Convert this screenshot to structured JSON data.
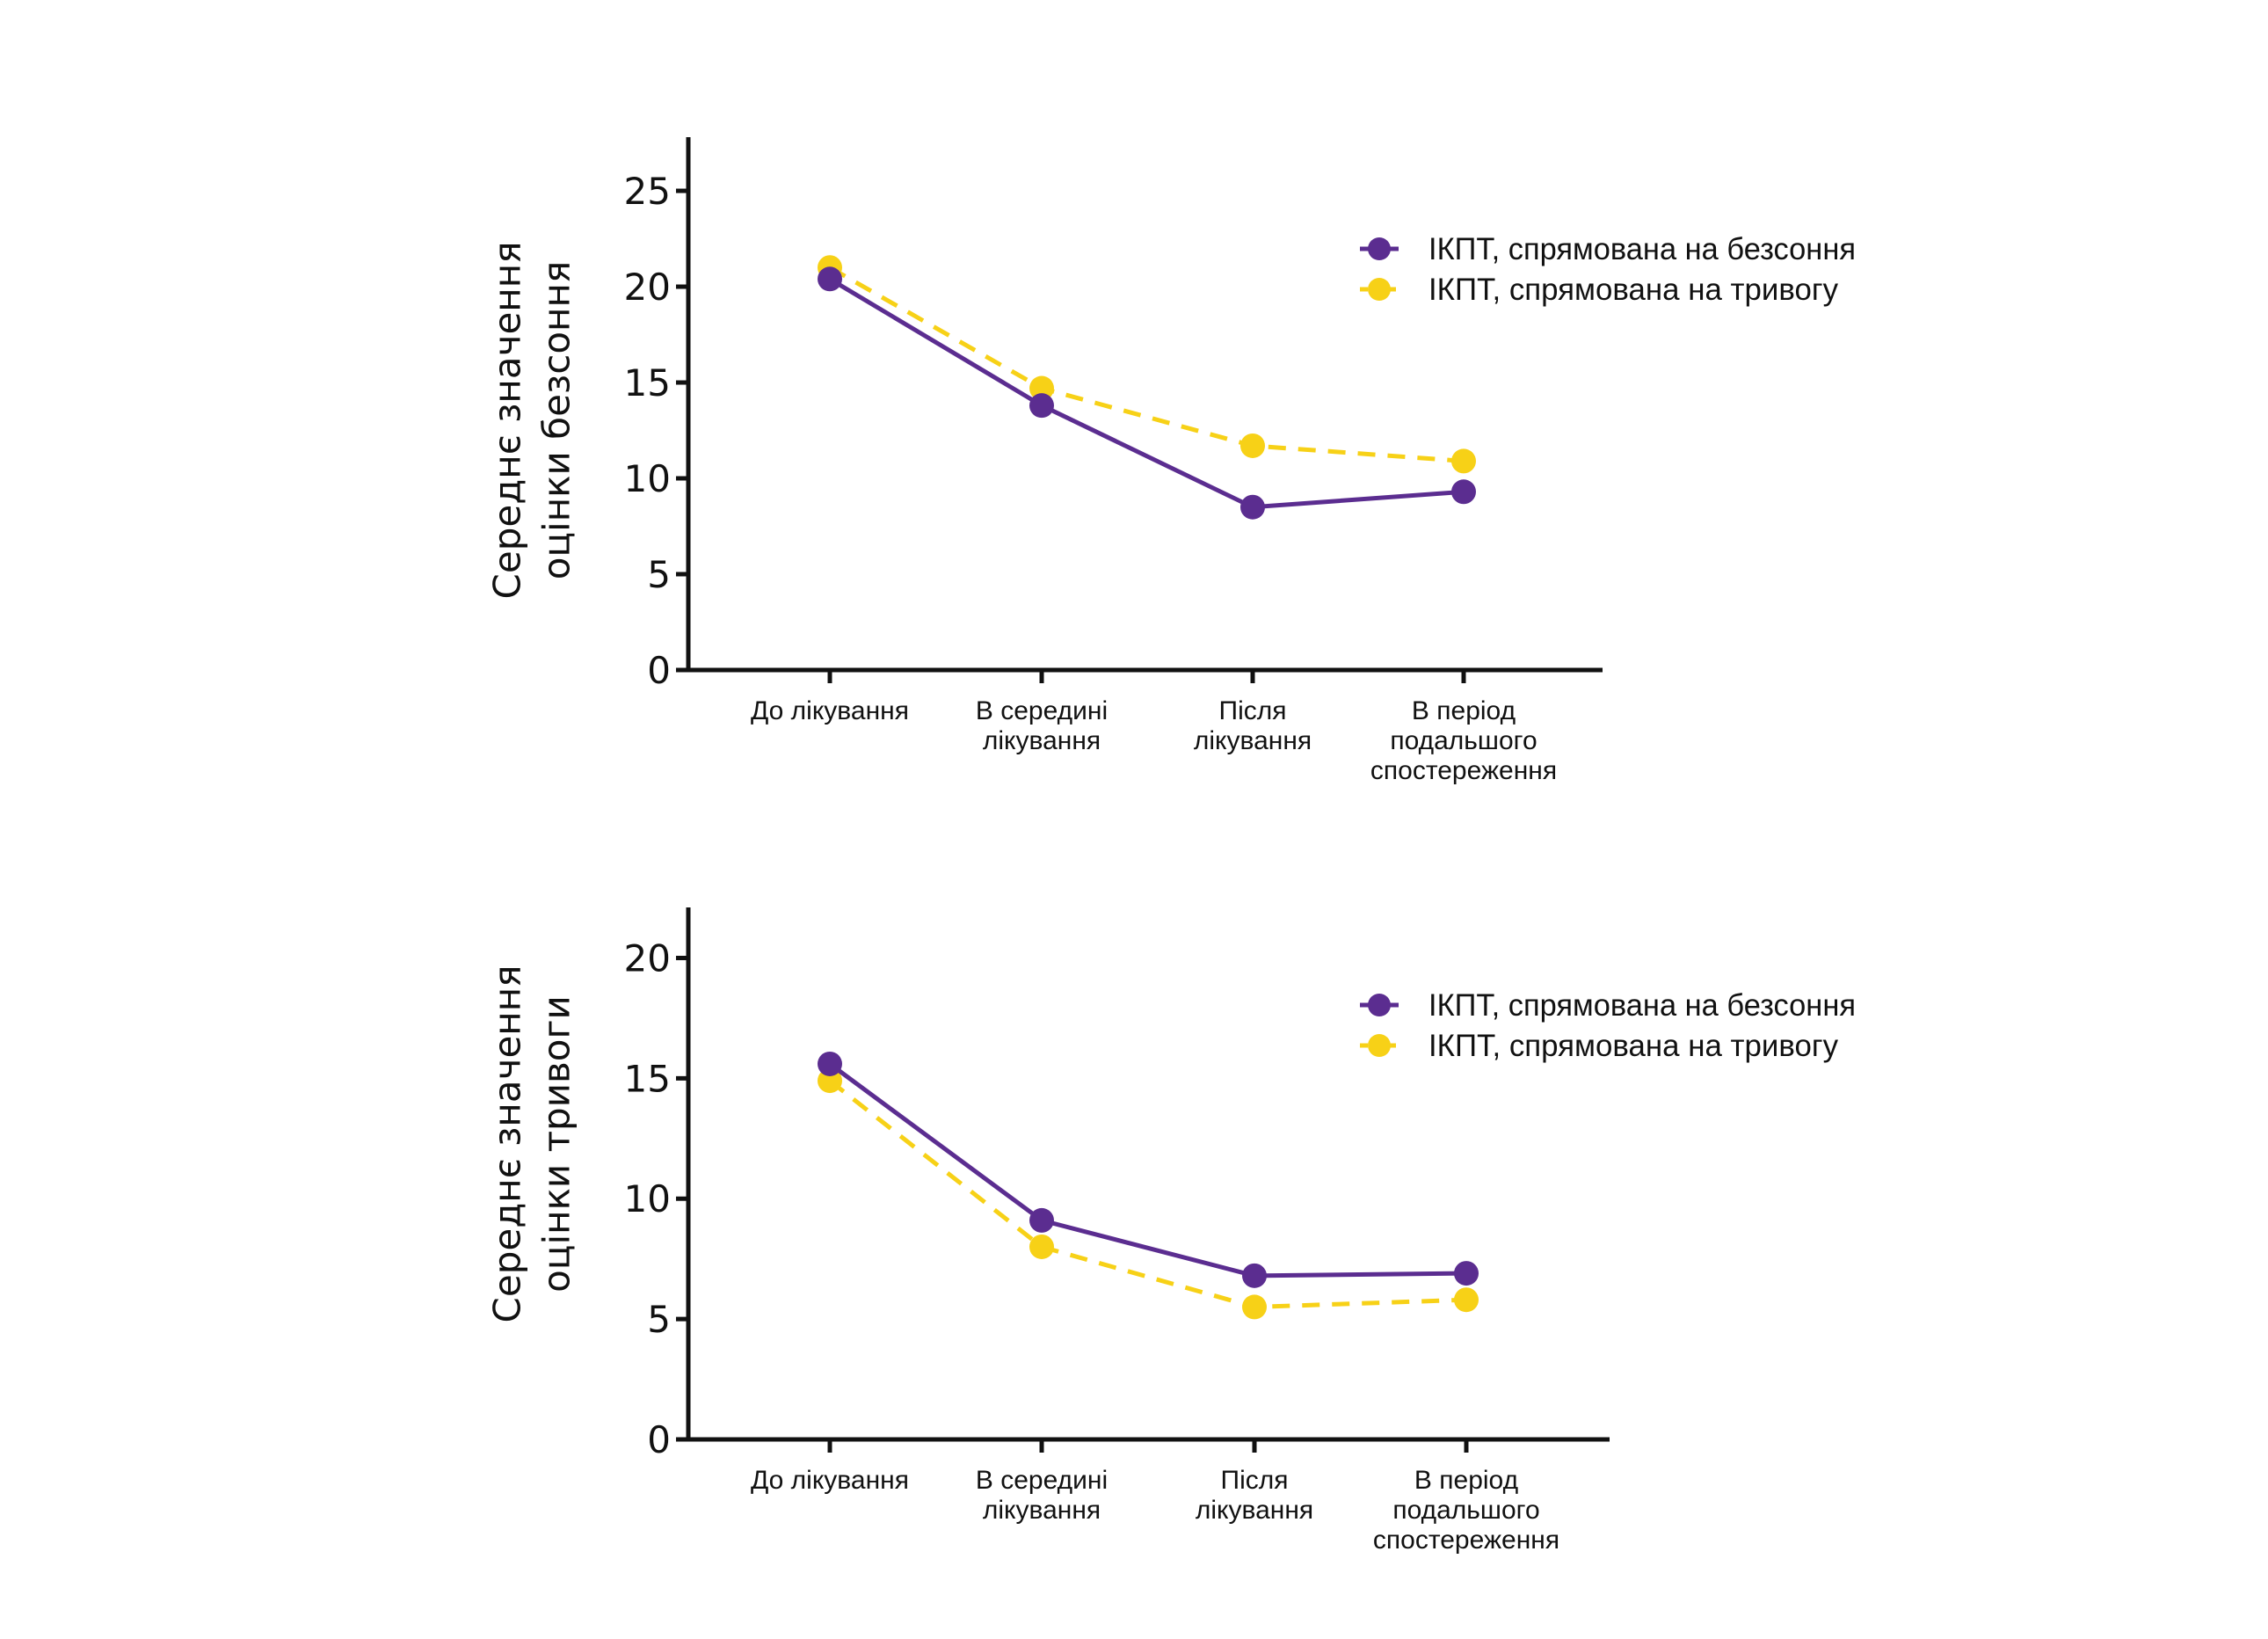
{
  "colors": {
    "insomnia": "#5B2D90",
    "anxiety": "#F7D117",
    "axis": "#111111"
  },
  "chart_data": [
    {
      "type": "line",
      "title": "",
      "xlabel": "",
      "ylabel": [
        "Середнє значення",
        "оцінки безсоння"
      ],
      "categories": [
        [
          "До лікування"
        ],
        [
          "В середині",
          "лікування"
        ],
        [
          "Після",
          "лікування"
        ],
        [
          "В період",
          "подальшого",
          "спостереження"
        ]
      ],
      "yticks": [
        "0",
        "5",
        "10",
        "15",
        "20",
        "25"
      ],
      "ylim": [
        0,
        27.8
      ],
      "grid": false,
      "legend_position": "top-right",
      "series": [
        {
          "name": "ІКПТ, спрямована на безсоння",
          "style": "solid",
          "color_key": "insomnia",
          "values": [
            20.4,
            13.8,
            8.5,
            9.3
          ]
        },
        {
          "name": "ІКПТ, спрямована на тривогу",
          "style": "dashed",
          "color_key": "anxiety",
          "values": [
            21.0,
            14.7,
            11.7,
            10.9
          ]
        }
      ]
    },
    {
      "type": "line",
      "title": "",
      "xlabel": "",
      "ylabel": [
        "Середнє значення",
        "оцінки тривоги"
      ],
      "categories": [
        [
          "До лікування"
        ],
        [
          "В середині",
          "лікування"
        ],
        [
          "Після",
          "лікування"
        ],
        [
          "В період",
          "подальшого",
          "спостереження"
        ]
      ],
      "yticks": [
        "0",
        "5",
        "10",
        "15",
        "20"
      ],
      "ylim": [
        0,
        22.1
      ],
      "grid": false,
      "legend_position": "top-right",
      "series": [
        {
          "name": "ІКПТ, спрямована на безсоння",
          "style": "solid",
          "color_key": "insomnia",
          "values": [
            15.6,
            9.1,
            6.8,
            6.9
          ]
        },
        {
          "name": "ІКПТ, спрямована на тривогу",
          "style": "dashed",
          "color_key": "anxiety",
          "values": [
            14.9,
            8.0,
            5.5,
            5.8
          ]
        }
      ]
    }
  ]
}
